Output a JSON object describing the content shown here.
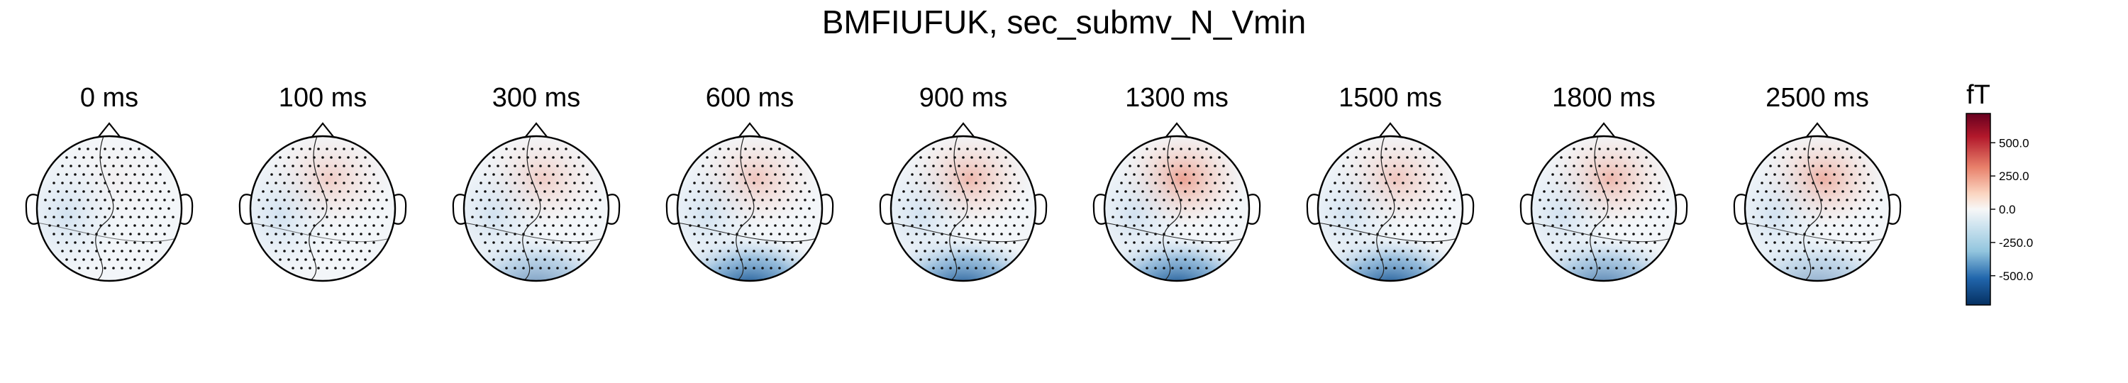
{
  "figure": {
    "title": "BMFIUFUK, sec_submv_N_Vmin"
  },
  "chart_data": {
    "type": "heatmap",
    "kind": "MEG topographic maps",
    "title": "BMFIUFUK, sec_submv_N_Vmin",
    "panels": [
      {
        "label": "0 ms",
        "time_ms": 0
      },
      {
        "label": "100 ms",
        "time_ms": 100
      },
      {
        "label": "300 ms",
        "time_ms": 300
      },
      {
        "label": "600 ms",
        "time_ms": 600
      },
      {
        "label": "900 ms",
        "time_ms": 900
      },
      {
        "label": "1300 ms",
        "time_ms": 1300
      },
      {
        "label": "1500 ms",
        "time_ms": 1500
      },
      {
        "label": "1800 ms",
        "time_ms": 1800
      },
      {
        "label": "2500 ms",
        "time_ms": 2500
      }
    ],
    "colorbar": {
      "unit": "fT",
      "colormap": "RdBu_r",
      "range": [
        -720,
        720
      ],
      "ticks": [
        500.0,
        250.0,
        0.0,
        -250.0,
        -500.0
      ],
      "tick_labels": [
        "500.0",
        "250.0",
        "0.0",
        "-250.0",
        "-500.0"
      ]
    },
    "features": {
      "front_positive_region": [
        {
          "time_ms": 0,
          "level": 0.05
        },
        {
          "time_ms": 100,
          "level": 0.3
        },
        {
          "time_ms": 300,
          "level": 0.3
        },
        {
          "time_ms": 600,
          "level": 0.35
        },
        {
          "time_ms": 900,
          "level": 0.45
        },
        {
          "time_ms": 1300,
          "level": 0.6
        },
        {
          "time_ms": 1500,
          "level": 0.35
        },
        {
          "time_ms": 1800,
          "level": 0.45
        },
        {
          "time_ms": 2500,
          "level": 0.5
        }
      ],
      "back_negative_region": [
        {
          "time_ms": 0,
          "level": 0.0
        },
        {
          "time_ms": 100,
          "level": 0.0
        },
        {
          "time_ms": 300,
          "level": 0.55
        },
        {
          "time_ms": 600,
          "level": 0.95
        },
        {
          "time_ms": 900,
          "level": 0.9
        },
        {
          "time_ms": 1300,
          "level": 0.95
        },
        {
          "time_ms": 1500,
          "level": 0.95
        },
        {
          "time_ms": 1800,
          "level": 0.7
        },
        {
          "time_ms": 2500,
          "level": 0.45
        }
      ]
    },
    "colors": {
      "positive": "#b2182b",
      "negative": "#2166ac",
      "neutral": "#f7f7f7"
    }
  }
}
